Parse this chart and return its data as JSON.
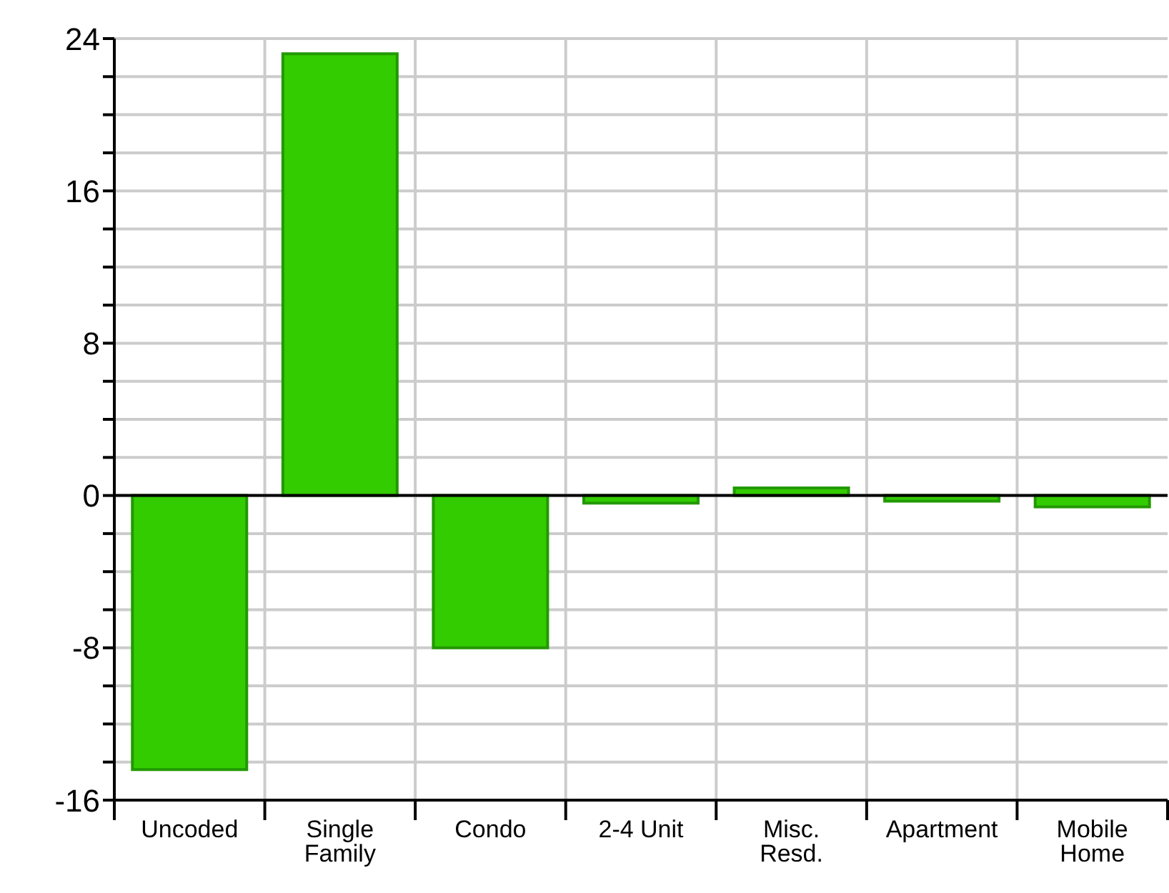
{
  "chart_data": {
    "type": "bar",
    "categories": [
      "Uncoded",
      "Single Family",
      "Condo",
      "2-4 Unit",
      "Misc. Resd.",
      "Apartment",
      "Mobile Home"
    ],
    "values": [
      -14.4,
      23.2,
      -8.0,
      -0.4,
      0.4,
      -0.3,
      -0.6
    ],
    "color": "#33cc00",
    "ylim": [
      -16,
      24
    ],
    "yticks": [
      -16,
      {
        "value": -14,
        "label": null
      },
      {
        "value": -12,
        "label": null
      },
      {
        "value": -10,
        "label": null
      },
      -8,
      {
        "value": -6,
        "label": null
      },
      {
        "value": -4,
        "label": null
      },
      {
        "value": -2,
        "label": null
      },
      0,
      {
        "value": 2,
        "label": null
      },
      {
        "value": 4,
        "label": null
      },
      {
        "value": 6,
        "label": null
      },
      8,
      {
        "value": 10,
        "label": null
      },
      {
        "value": 12,
        "label": null
      },
      {
        "value": 14,
        "label": null
      },
      16,
      {
        "value": 18,
        "label": null
      },
      {
        "value": 20,
        "label": null
      },
      {
        "value": 22,
        "label": null
      },
      24
    ],
    "ref_lines": [
      {
        "axis": "y",
        "value": 0,
        "color": "#000000"
      }
    ],
    "grid": true
  }
}
